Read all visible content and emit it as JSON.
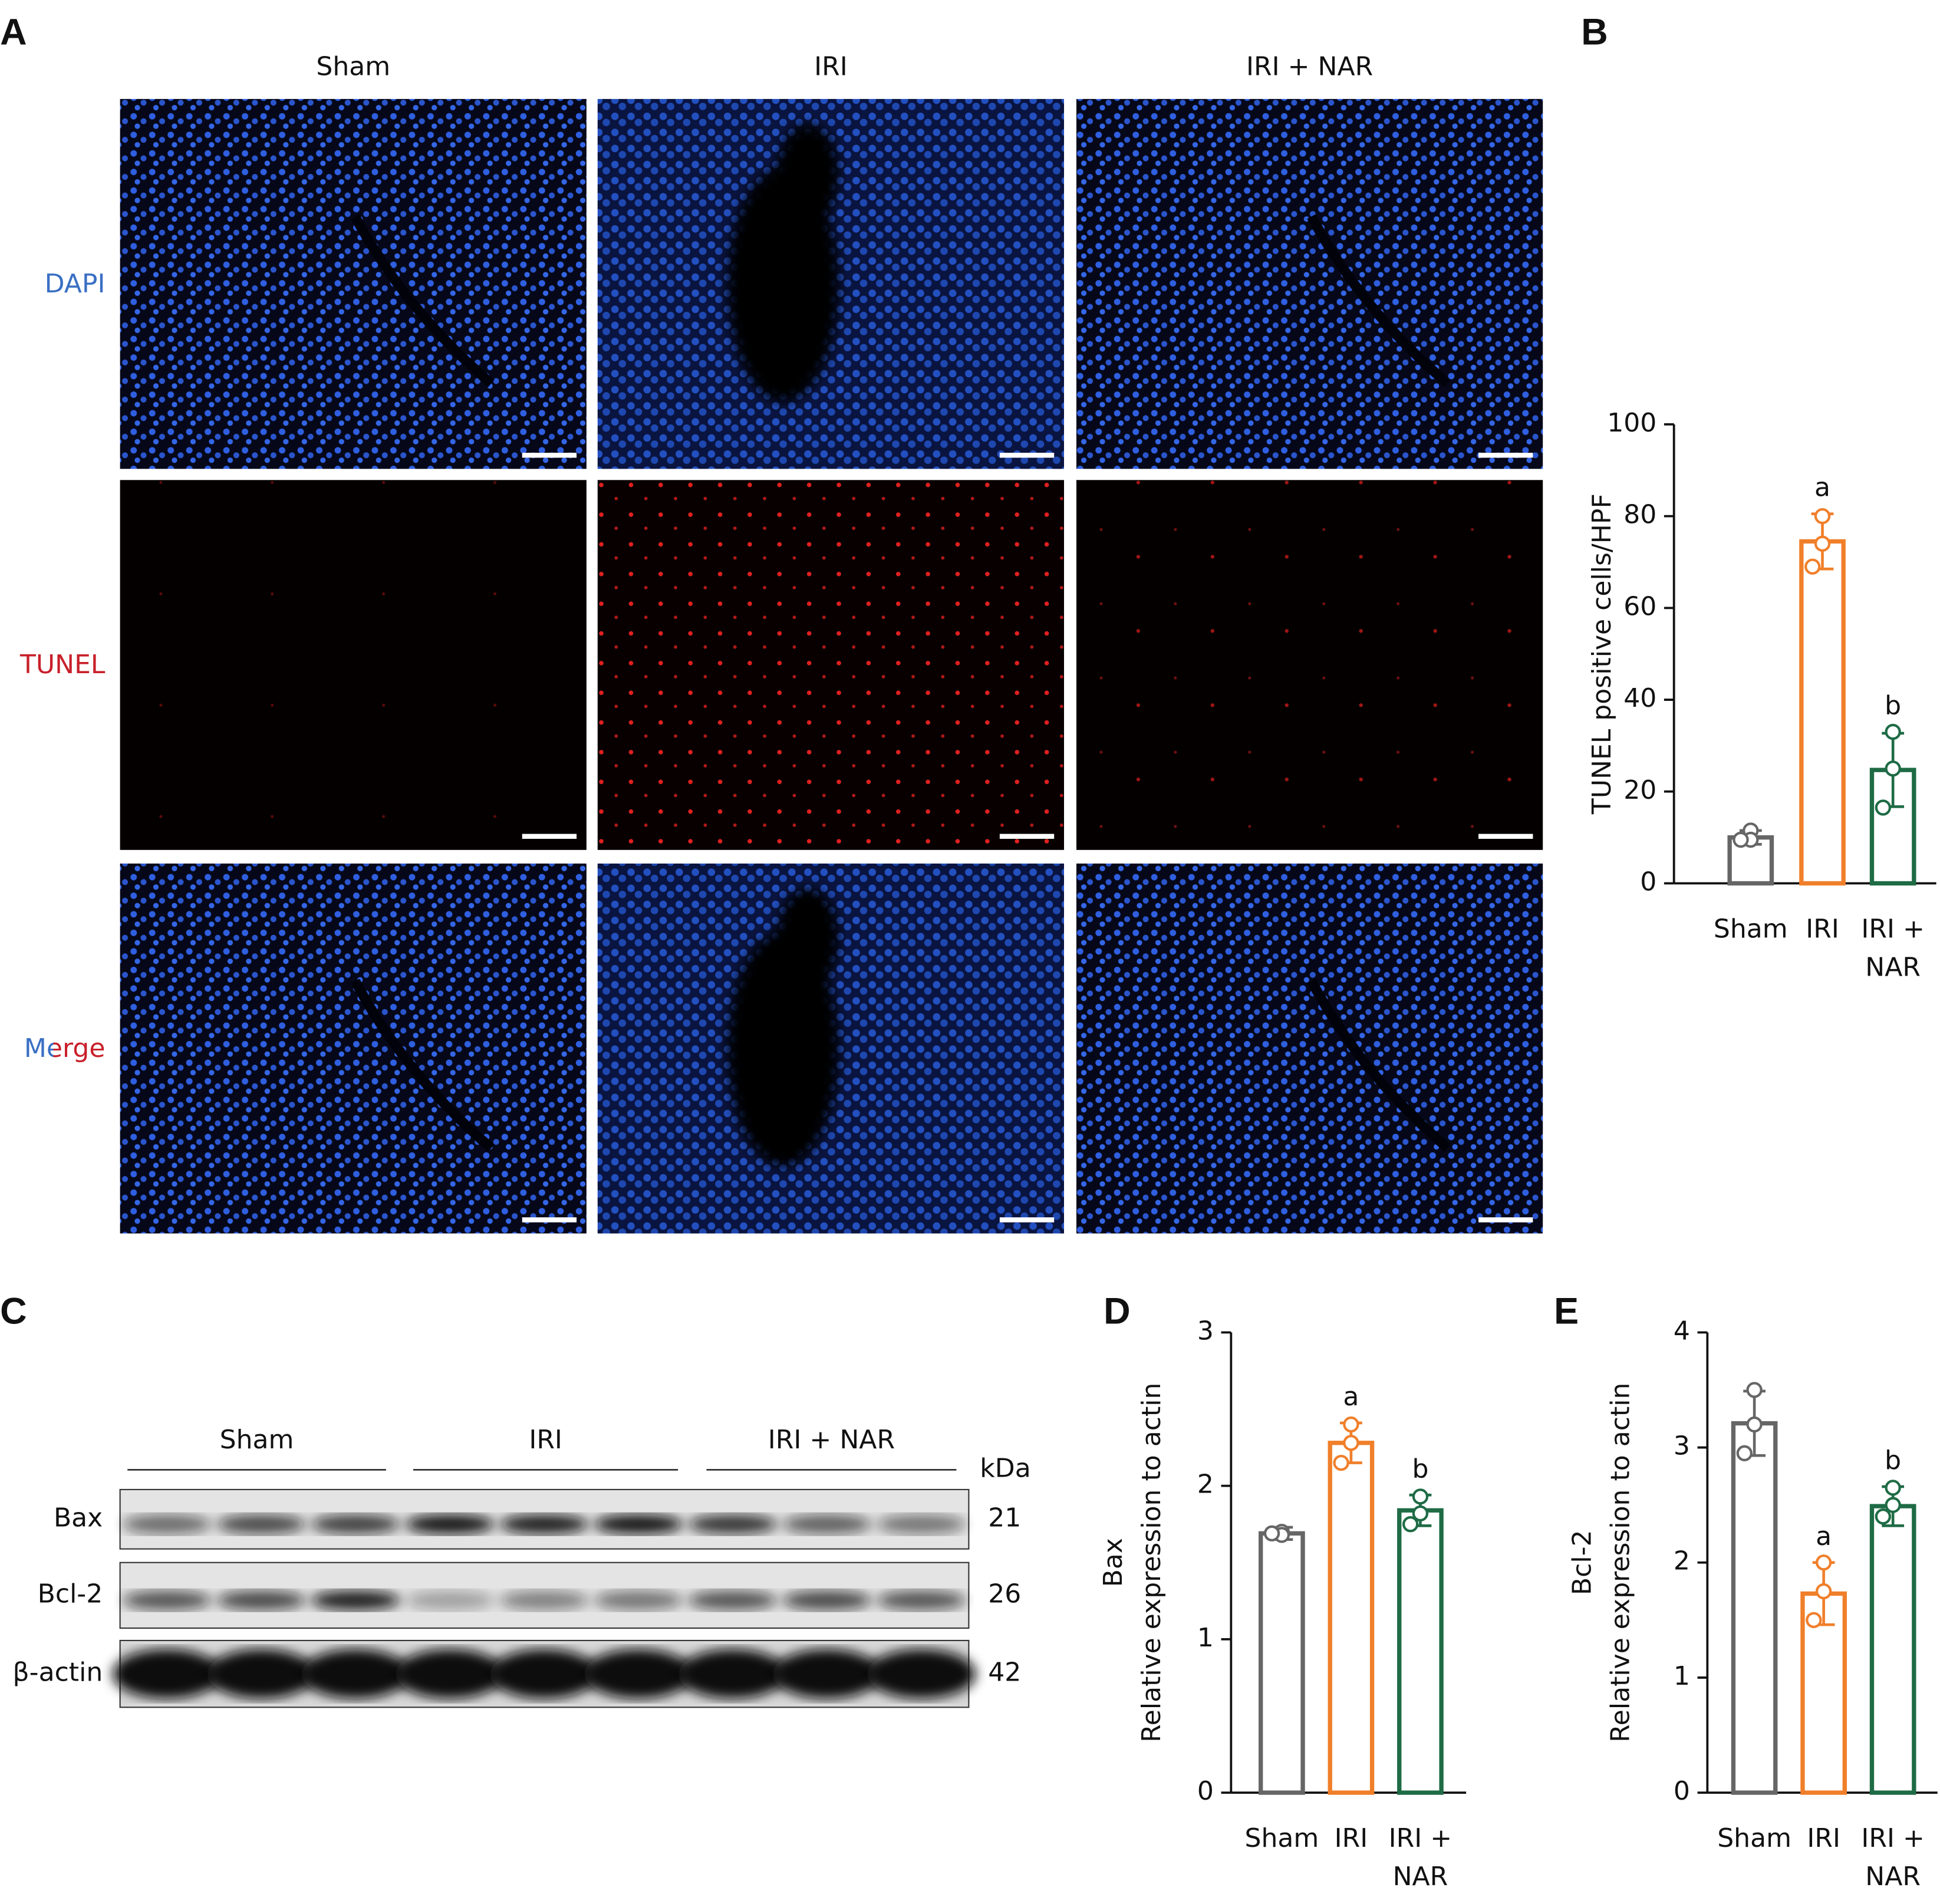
{
  "figure": {
    "panel_letters": [
      "A",
      "B",
      "C",
      "D",
      "E"
    ],
    "micrograph_columns": [
      "Sham",
      "IRI",
      "IRI + NAR"
    ],
    "micrograph_rows": [
      "DAPI",
      "TUNEL",
      "Merge"
    ]
  },
  "blot": {
    "groups": [
      "Sham",
      "IRI",
      "IRI + NAR"
    ],
    "unit": "kDa",
    "rows": [
      {
        "name": "Bax",
        "kda": 21
      },
      {
        "name": "Bcl-2",
        "kda": 26
      },
      {
        "name": "β-actin",
        "kda": 42
      }
    ]
  },
  "chart_data": [
    {
      "type": "bar",
      "categories": [
        "Sham",
        "IRI",
        "IRI + NAR"
      ],
      "colors": [
        "#666666",
        "#f07f2a",
        "#1e6b45"
      ],
      "values": [
        10,
        74.5,
        24.7
      ],
      "errors": [
        1.5,
        6,
        8
      ],
      "points": [
        [
          11.5,
          9.5,
          9.5
        ],
        [
          80,
          74,
          69
        ],
        [
          33,
          25,
          16.5
        ]
      ],
      "ylabel": "TUNEL positive cells/HPF",
      "ylim": [
        0,
        100
      ],
      "yticks": [
        0,
        20,
        40,
        60,
        80,
        100
      ],
      "annotations": [
        {
          "text": "a",
          "category": "IRI"
        },
        {
          "text": "b",
          "category": "IRI + NAR"
        }
      ]
    },
    {
      "type": "bar",
      "categories": [
        "Sham",
        "IRI",
        "IRI + NAR"
      ],
      "colors": [
        "#666666",
        "#f07f2a",
        "#1e6b45"
      ],
      "values": [
        1.69,
        2.28,
        1.84
      ],
      "errors": [
        0.04,
        0.13,
        0.1
      ],
      "points": [
        [
          1.7,
          1.68,
          1.69
        ],
        [
          2.4,
          2.28,
          2.15
        ],
        [
          1.93,
          1.82,
          1.75
        ]
      ],
      "ylabel": [
        "Bax",
        "Relative expression to actin"
      ],
      "ylim": [
        0,
        3
      ],
      "yticks": [
        0,
        1,
        2,
        3
      ],
      "annotations": [
        {
          "text": "a",
          "category": "IRI"
        },
        {
          "text": "b",
          "category": "IRI + NAR"
        }
      ]
    },
    {
      "type": "bar",
      "categories": [
        "Sham",
        "IRI",
        "IRI + NAR"
      ],
      "colors": [
        "#666666",
        "#f07f2a",
        "#1e6b45"
      ],
      "values": [
        3.21,
        1.73,
        2.49
      ],
      "errors": [
        0.28,
        0.27,
        0.17
      ],
      "points": [
        [
          3.5,
          3.2,
          2.95
        ],
        [
          2.0,
          1.75,
          1.5
        ],
        [
          2.65,
          2.5,
          2.4
        ]
      ],
      "ylabel": [
        "Bcl-2",
        "Relative expression to actin"
      ],
      "ylim": [
        0,
        4
      ],
      "yticks": [
        0,
        1,
        2,
        3,
        4
      ],
      "annotations": [
        {
          "text": "a",
          "category": "IRI"
        },
        {
          "text": "b",
          "category": "IRI + NAR"
        }
      ]
    }
  ]
}
